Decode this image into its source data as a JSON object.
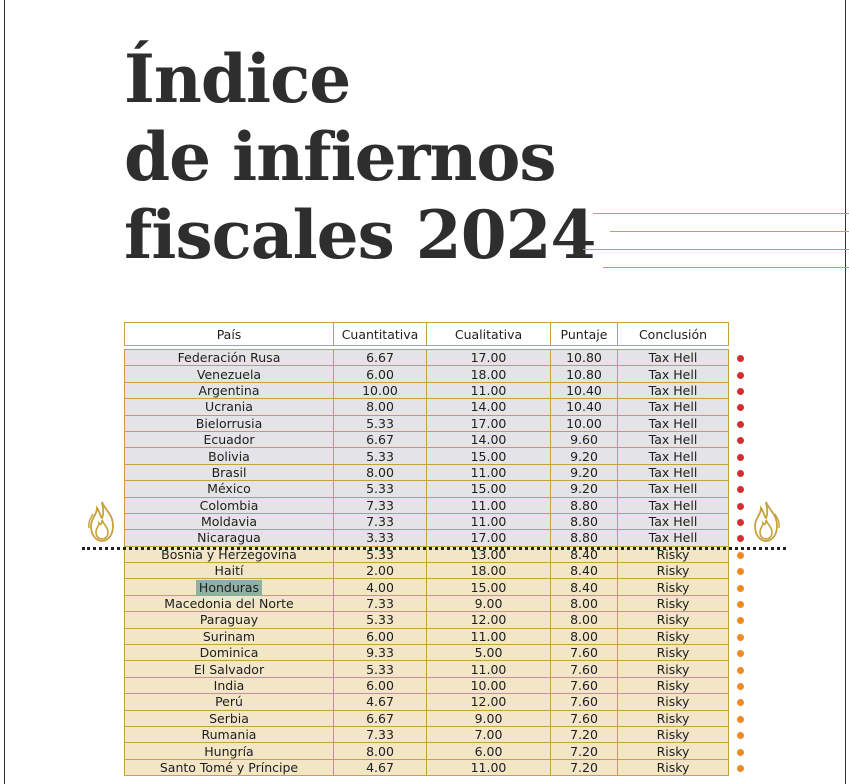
{
  "title": {
    "line1": "Índice",
    "line2": "de infiernos",
    "line3": "fiscales 2024"
  },
  "colors": {
    "gold": "#c9a03c",
    "tax_hell": "#d32f2f",
    "risky": "#ef8a24"
  },
  "icons": {
    "left": "flame-icon",
    "right": "flame-icon"
  },
  "table": {
    "headers": [
      "País",
      "Cuantitativa",
      "Cualitativa",
      "Puntaje",
      "Conclusión"
    ],
    "rows": [
      {
        "country": "Federación Rusa",
        "quant": "6.67",
        "qual": "17.00",
        "score": "10.80",
        "conclusion": "Tax Hell",
        "status": "hell"
      },
      {
        "country": "Venezuela",
        "quant": "6.00",
        "qual": "18.00",
        "score": "10.80",
        "conclusion": "Tax Hell",
        "status": "hell"
      },
      {
        "country": "Argentina",
        "quant": "10.00",
        "qual": "11.00",
        "score": "10.40",
        "conclusion": "Tax Hell",
        "status": "hell"
      },
      {
        "country": "Ucrania",
        "quant": "8.00",
        "qual": "14.00",
        "score": "10.40",
        "conclusion": "Tax Hell",
        "status": "hell"
      },
      {
        "country": "Bielorrusia",
        "quant": "5.33",
        "qual": "17.00",
        "score": "10.00",
        "conclusion": "Tax Hell",
        "status": "hell"
      },
      {
        "country": "Ecuador",
        "quant": "6.67",
        "qual": "14.00",
        "score": "9.60",
        "conclusion": "Tax Hell",
        "status": "hell"
      },
      {
        "country": "Bolivia",
        "quant": "5.33",
        "qual": "15.00",
        "score": "9.20",
        "conclusion": "Tax Hell",
        "status": "hell"
      },
      {
        "country": "Brasil",
        "quant": "8.00",
        "qual": "11.00",
        "score": "9.20",
        "conclusion": "Tax Hell",
        "status": "hell"
      },
      {
        "country": "México",
        "quant": "5.33",
        "qual": "15.00",
        "score": "9.20",
        "conclusion": "Tax Hell",
        "status": "hell"
      },
      {
        "country": "Colombia",
        "quant": "7.33",
        "qual": "11.00",
        "score": "8.80",
        "conclusion": "Tax Hell",
        "status": "hell"
      },
      {
        "country": "Moldavia",
        "quant": "7.33",
        "qual": "11.00",
        "score": "8.80",
        "conclusion": "Tax Hell",
        "status": "hell"
      },
      {
        "country": "Nicaragua",
        "quant": "3.33",
        "qual": "17.00",
        "score": "8.80",
        "conclusion": "Tax Hell",
        "status": "hell"
      },
      {
        "country": "Bosnia y Herzegovina",
        "quant": "5.33",
        "qual": "13.00",
        "score": "8.40",
        "conclusion": "Risky",
        "status": "risky"
      },
      {
        "country": "Haití",
        "quant": "2.00",
        "qual": "18.00",
        "score": "8.40",
        "conclusion": "Risky",
        "status": "risky"
      },
      {
        "country": "Honduras",
        "quant": "4.00",
        "qual": "15.00",
        "score": "8.40",
        "conclusion": "Risky",
        "status": "risky",
        "highlight": true
      },
      {
        "country": "Macedonia del Norte",
        "quant": "7.33",
        "qual": "9.00",
        "score": "8.00",
        "conclusion": "Risky",
        "status": "risky"
      },
      {
        "country": "Paraguay",
        "quant": "5.33",
        "qual": "12.00",
        "score": "8.00",
        "conclusion": "Risky",
        "status": "risky"
      },
      {
        "country": "Surinam",
        "quant": "6.00",
        "qual": "11.00",
        "score": "8.00",
        "conclusion": "Risky",
        "status": "risky"
      },
      {
        "country": "Dominica",
        "quant": "9.33",
        "qual": "5.00",
        "score": "7.60",
        "conclusion": "Risky",
        "status": "risky"
      },
      {
        "country": "El Salvador",
        "quant": "5.33",
        "qual": "11.00",
        "score": "7.60",
        "conclusion": "Risky",
        "status": "risky"
      },
      {
        "country": "India",
        "quant": "6.00",
        "qual": "10.00",
        "score": "7.60",
        "conclusion": "Risky",
        "status": "risky"
      },
      {
        "country": "Perú",
        "quant": "4.67",
        "qual": "12.00",
        "score": "7.60",
        "conclusion": "Risky",
        "status": "risky"
      },
      {
        "country": "Serbia",
        "quant": "6.67",
        "qual": "9.00",
        "score": "7.60",
        "conclusion": "Risky",
        "status": "risky"
      },
      {
        "country": "Rumania",
        "quant": "7.33",
        "qual": "7.00",
        "score": "7.20",
        "conclusion": "Risky",
        "status": "risky"
      },
      {
        "country": "Hungría",
        "quant": "8.00",
        "qual": "6.00",
        "score": "7.20",
        "conclusion": "Risky",
        "status": "risky"
      },
      {
        "country": "Santo Tomé y Príncipe",
        "quant": "4.67",
        "qual": "11.00",
        "score": "7.20",
        "conclusion": "Risky",
        "status": "risky"
      }
    ]
  }
}
